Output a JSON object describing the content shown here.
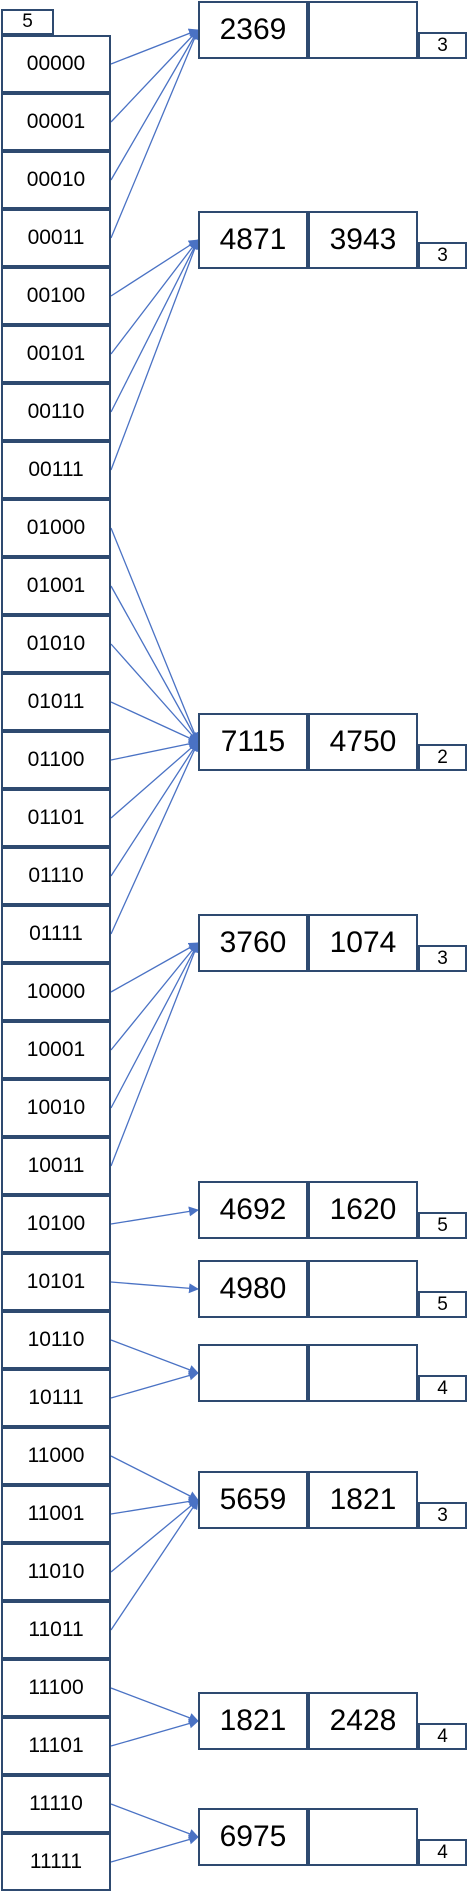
{
  "global_depth": "5",
  "directory": [
    {
      "label": "00000",
      "bucket": 0
    },
    {
      "label": "00001",
      "bucket": 0
    },
    {
      "label": "00010",
      "bucket": 0
    },
    {
      "label": "00011",
      "bucket": 0
    },
    {
      "label": "00100",
      "bucket": 1
    },
    {
      "label": "00101",
      "bucket": 1
    },
    {
      "label": "00110",
      "bucket": 1
    },
    {
      "label": "00111",
      "bucket": 1
    },
    {
      "label": "01000",
      "bucket": 2
    },
    {
      "label": "01001",
      "bucket": 2
    },
    {
      "label": "01010",
      "bucket": 2
    },
    {
      "label": "01011",
      "bucket": 2
    },
    {
      "label": "01100",
      "bucket": 2
    },
    {
      "label": "01101",
      "bucket": 2
    },
    {
      "label": "01110",
      "bucket": 2
    },
    {
      "label": "01111",
      "bucket": 2
    },
    {
      "label": "10000",
      "bucket": 3
    },
    {
      "label": "10001",
      "bucket": 3
    },
    {
      "label": "10010",
      "bucket": 3
    },
    {
      "label": "10011",
      "bucket": 3
    },
    {
      "label": "10100",
      "bucket": 4
    },
    {
      "label": "10101",
      "bucket": 5
    },
    {
      "label": "10110",
      "bucket": 6
    },
    {
      "label": "10111",
      "bucket": 6
    },
    {
      "label": "11000",
      "bucket": 7
    },
    {
      "label": "11001",
      "bucket": 7
    },
    {
      "label": "11010",
      "bucket": 7
    },
    {
      "label": "11011",
      "bucket": 7
    },
    {
      "label": "11100",
      "bucket": 8
    },
    {
      "label": "11101",
      "bucket": 8
    },
    {
      "label": "11110",
      "bucket": 9
    },
    {
      "label": "11111",
      "bucket": 9
    }
  ],
  "buckets": [
    {
      "keys": [
        "2369",
        ""
      ],
      "local_depth": "3"
    },
    {
      "keys": [
        "4871",
        "3943"
      ],
      "local_depth": "3"
    },
    {
      "keys": [
        "7115",
        "4750"
      ],
      "local_depth": "2"
    },
    {
      "keys": [
        "3760",
        "1074"
      ],
      "local_depth": "3"
    },
    {
      "keys": [
        "4692",
        "1620"
      ],
      "local_depth": "5"
    },
    {
      "keys": [
        "4980",
        ""
      ],
      "local_depth": "5"
    },
    {
      "keys": [
        "",
        ""
      ],
      "local_depth": "4"
    },
    {
      "keys": [
        "5659",
        "1821"
      ],
      "local_depth": "3"
    },
    {
      "keys": [
        "1821",
        "2428"
      ],
      "local_depth": "4"
    },
    {
      "keys": [
        "6975",
        ""
      ],
      "local_depth": "4"
    }
  ],
  "colors": {
    "border": "#2e4a70",
    "arrow": "#4a72c4"
  }
}
